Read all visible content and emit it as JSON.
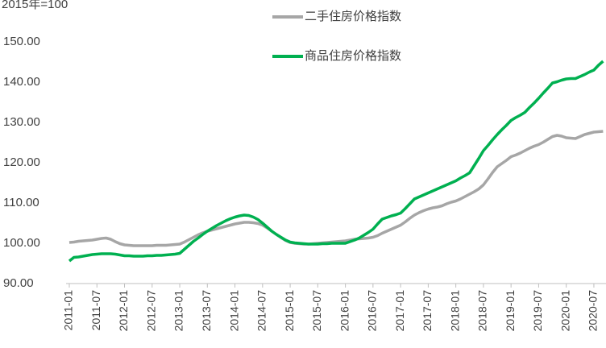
{
  "chart_data": {
    "type": "line",
    "title": "2015年=100",
    "categories": [
      "2011-01",
      null,
      null,
      null,
      null,
      null,
      "2011-07",
      null,
      null,
      null,
      null,
      null,
      "2012-01",
      null,
      null,
      null,
      null,
      null,
      "2012-07",
      null,
      null,
      null,
      null,
      null,
      "2013-01",
      null,
      null,
      null,
      null,
      null,
      "2013-07",
      null,
      null,
      null,
      null,
      null,
      "2014-01",
      null,
      null,
      null,
      null,
      null,
      "2014-07",
      null,
      null,
      null,
      null,
      null,
      "2015-01",
      null,
      null,
      null,
      null,
      null,
      "2015-07",
      null,
      null,
      null,
      null,
      null,
      "2016-01",
      null,
      null,
      null,
      null,
      null,
      "2016-07",
      null,
      null,
      null,
      null,
      null,
      "2017-01",
      null,
      null,
      null,
      null,
      null,
      "2017-07",
      null,
      null,
      null,
      null,
      null,
      "2018-01",
      null,
      null,
      null,
      null,
      null,
      "2018-07",
      null,
      null,
      null,
      null,
      null,
      "2019-01",
      null,
      null,
      null,
      null,
      null,
      "2019-07",
      null,
      null,
      null,
      null,
      null,
      "2020-01",
      null,
      null,
      null,
      null,
      null,
      "2020-07",
      null,
      null
    ],
    "series": [
      {
        "name": "二手住房价格指数",
        "color": "#a6a6a6",
        "values": [
          100.2,
          100.3,
          100.5,
          100.6,
          100.7,
          100.8,
          101.0,
          101.2,
          101.3,
          101.0,
          100.4,
          99.9,
          99.6,
          99.5,
          99.4,
          99.4,
          99.4,
          99.4,
          99.4,
          99.5,
          99.5,
          99.5,
          99.6,
          99.7,
          99.8,
          100.3,
          100.9,
          101.5,
          102.1,
          102.6,
          103.0,
          103.3,
          103.6,
          103.9,
          104.2,
          104.5,
          104.8,
          105.0,
          105.2,
          105.2,
          105.1,
          104.9,
          104.5,
          103.8,
          103.0,
          102.2,
          101.4,
          100.7,
          100.2,
          100.0,
          99.9,
          99.8,
          99.8,
          99.9,
          100.0,
          100.1,
          100.2,
          100.3,
          100.4,
          100.5,
          100.6,
          100.8,
          101.0,
          101.1,
          101.2,
          101.3,
          101.5,
          101.9,
          102.5,
          103.0,
          103.5,
          104.0,
          104.5,
          105.3,
          106.2,
          107.0,
          107.6,
          108.1,
          108.5,
          108.8,
          109.0,
          109.3,
          109.8,
          110.2,
          110.5,
          111.0,
          111.6,
          112.2,
          112.8,
          113.5,
          114.5,
          116.0,
          117.6,
          119.0,
          119.8,
          120.6,
          121.5,
          121.9,
          122.4,
          123.0,
          123.6,
          124.1,
          124.5,
          125.1,
          125.8,
          126.5,
          126.8,
          126.6,
          126.2,
          126.1,
          126.0,
          126.5,
          127.0,
          127.3,
          127.6,
          127.7,
          127.8
        ]
      },
      {
        "name": "商品住房价格指数",
        "color": "#00b050",
        "values": [
          95.6,
          96.5,
          96.6,
          96.8,
          97.0,
          97.2,
          97.3,
          97.4,
          97.4,
          97.4,
          97.3,
          97.1,
          96.9,
          96.9,
          96.8,
          96.8,
          96.8,
          96.9,
          96.9,
          97.0,
          97.0,
          97.1,
          97.2,
          97.3,
          97.5,
          98.5,
          99.5,
          100.5,
          101.3,
          102.2,
          103.0,
          103.7,
          104.4,
          105.0,
          105.6,
          106.1,
          106.5,
          106.8,
          107.0,
          106.9,
          106.5,
          105.9,
          105.0,
          104.0,
          103.0,
          102.2,
          101.5,
          100.8,
          100.3,
          100.1,
          100.0,
          99.9,
          99.8,
          99.8,
          99.8,
          99.9,
          99.9,
          100.0,
          100.0,
          100.0,
          100.0,
          100.4,
          100.8,
          101.3,
          102.0,
          102.7,
          103.5,
          104.8,
          106.0,
          106.4,
          106.8,
          107.1,
          107.5,
          108.6,
          109.8,
          111.0,
          111.5,
          112.0,
          112.5,
          113.0,
          113.5,
          114.0,
          114.5,
          115.0,
          115.5,
          116.2,
          116.8,
          117.5,
          119.3,
          121.1,
          123.0,
          124.3,
          125.7,
          127.0,
          128.2,
          129.3,
          130.5,
          131.2,
          131.8,
          132.5,
          133.7,
          134.8,
          136.0,
          137.3,
          138.5,
          139.8,
          140.1,
          140.5,
          140.8,
          140.9,
          140.9,
          141.4,
          141.9,
          142.5,
          143.0,
          144.2,
          145.2
        ]
      }
    ],
    "ylim": [
      90,
      150
    ],
    "yticks": [
      {
        "value": 90,
        "label": "90.00"
      },
      {
        "value": 100,
        "label": "100.00"
      },
      {
        "value": 110,
        "label": "110.00"
      },
      {
        "value": 120,
        "label": "120.00"
      },
      {
        "value": 130,
        "label": "130.00"
      },
      {
        "value": 140,
        "label": "140.00"
      },
      {
        "value": 150,
        "label": "150.00"
      }
    ],
    "grid": false
  }
}
